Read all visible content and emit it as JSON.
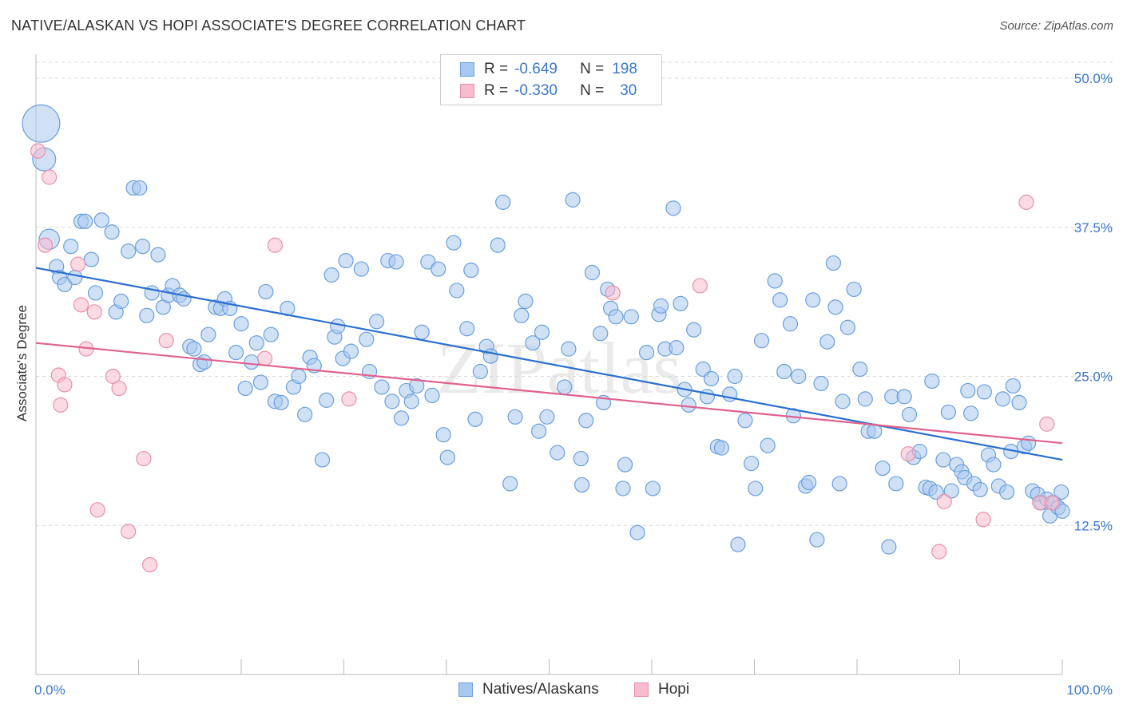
{
  "title": "NATIVE/ALASKAN VS HOPI ASSOCIATE'S DEGREE CORRELATION CHART",
  "source": "Source: ZipAtlas.com",
  "watermark": "ZIPatlas",
  "legend": {
    "rows": [
      {
        "r_label": "R =",
        "r_value": "-0.649",
        "n_label": "N =",
        "n_value": "198"
      },
      {
        "r_label": "R =",
        "r_value": "-0.330",
        "n_label": "N =",
        "n_value": "30"
      }
    ]
  },
  "bottom_legend": {
    "series1": "Natives/Alaskans",
    "series2": "Hopi"
  },
  "colors": {
    "blue_fill": "#a9c8ef",
    "blue_stroke": "#6a9fdc",
    "blue_line": "#2b6fd0",
    "pink_fill": "#f7bccd",
    "pink_stroke": "#e890ab",
    "pink_line": "#e0628e",
    "tick_text": "#3b78c9",
    "grid": "#d9d9d9"
  },
  "chart_data": {
    "type": "scatter",
    "title": "NATIVE/ALASKAN VS HOPI ASSOCIATE'S DEGREE CORRELATION CHART",
    "xlabel": "",
    "ylabel": "Associate's Degree",
    "xlim": [
      0,
      100
    ],
    "ylim": [
      0,
      52.5
    ],
    "x_tick_labels": [
      "0.0%",
      "100.0%"
    ],
    "y_ticks": [
      12.5,
      25.0,
      37.5,
      50.0
    ],
    "y_tick_labels": [
      "12.5%",
      "25.0%",
      "37.5%",
      "50.0%"
    ],
    "grid": true,
    "legend_position": "top-center",
    "series": [
      {
        "name": "Natives/Alaskans",
        "R": -0.649,
        "N": 198,
        "trend": {
          "x0": 0,
          "y0": 34.1,
          "x1": 100,
          "y1": 18.0
        },
        "points": [
          [
            0.5,
            46.2,
            2.6
          ],
          [
            0.8,
            43.2,
            1.6
          ],
          [
            1.3,
            36.5,
            1.4
          ],
          [
            2.0,
            34.2,
            1
          ],
          [
            2.3,
            33.3,
            1
          ],
          [
            2.8,
            32.7,
            1
          ],
          [
            3.4,
            35.9,
            1
          ],
          [
            3.8,
            33.3,
            1
          ],
          [
            4.4,
            38.0,
            1
          ],
          [
            4.8,
            38.0,
            1
          ],
          [
            5.4,
            34.8,
            1
          ],
          [
            5.8,
            32.0,
            1
          ],
          [
            6.4,
            38.1,
            1
          ],
          [
            7.4,
            37.1,
            1
          ],
          [
            7.8,
            30.4,
            1
          ],
          [
            8.3,
            31.3,
            1
          ],
          [
            9.0,
            35.5,
            1
          ],
          [
            9.5,
            40.8,
            1
          ],
          [
            10.1,
            40.8,
            1
          ],
          [
            10.4,
            35.9,
            1
          ],
          [
            10.8,
            30.1,
            1
          ],
          [
            11.3,
            32.0,
            1
          ],
          [
            11.9,
            35.2,
            1
          ],
          [
            12.4,
            30.8,
            1
          ],
          [
            12.9,
            31.8,
            1
          ],
          [
            13.3,
            32.6,
            1
          ],
          [
            14.0,
            31.8,
            1
          ],
          [
            14.4,
            31.5,
            1
          ],
          [
            15.0,
            27.5,
            1
          ],
          [
            15.4,
            27.3,
            1
          ],
          [
            16.0,
            26.0,
            1
          ],
          [
            16.4,
            26.2,
            1
          ],
          [
            16.8,
            28.5,
            1
          ],
          [
            17.5,
            30.8,
            1
          ],
          [
            18.0,
            30.7,
            1
          ],
          [
            18.4,
            31.5,
            1
          ],
          [
            18.9,
            30.7,
            1
          ],
          [
            19.5,
            27.0,
            1
          ],
          [
            20.0,
            29.4,
            1
          ],
          [
            20.4,
            24.0,
            1
          ],
          [
            21.0,
            26.2,
            1
          ],
          [
            21.5,
            27.8,
            1
          ],
          [
            21.9,
            24.5,
            1
          ],
          [
            22.4,
            32.1,
            1
          ],
          [
            22.9,
            28.5,
            1
          ],
          [
            23.3,
            22.9,
            1
          ],
          [
            23.9,
            22.8,
            1
          ],
          [
            24.5,
            30.7,
            1
          ],
          [
            25.1,
            24.1,
            1
          ],
          [
            25.6,
            25.0,
            1
          ],
          [
            26.2,
            21.8,
            1
          ],
          [
            26.7,
            26.6,
            1
          ],
          [
            27.1,
            25.9,
            1
          ],
          [
            27.9,
            18.0,
            1
          ],
          [
            28.3,
            23.0,
            1
          ],
          [
            28.8,
            33.5,
            1
          ],
          [
            29.1,
            28.3,
            1
          ],
          [
            29.4,
            29.2,
            1
          ],
          [
            29.9,
            26.5,
            1
          ],
          [
            30.2,
            34.7,
            1
          ],
          [
            30.7,
            27.1,
            1
          ],
          [
            31.7,
            34.0,
            1
          ],
          [
            32.2,
            28.1,
            1
          ],
          [
            32.5,
            25.4,
            1
          ],
          [
            33.2,
            29.6,
            1
          ],
          [
            33.7,
            24.1,
            1
          ],
          [
            34.3,
            34.7,
            1
          ],
          [
            34.7,
            22.9,
            1
          ],
          [
            35.1,
            34.6,
            1
          ],
          [
            35.6,
            21.5,
            1
          ],
          [
            36.1,
            23.8,
            1
          ],
          [
            36.6,
            22.9,
            1
          ],
          [
            37.1,
            24.2,
            1
          ],
          [
            37.6,
            28.7,
            1
          ],
          [
            38.2,
            34.6,
            1
          ],
          [
            38.6,
            23.4,
            1
          ],
          [
            39.2,
            34.0,
            1
          ],
          [
            39.7,
            20.1,
            1
          ],
          [
            40.1,
            18.2,
            1
          ],
          [
            40.7,
            36.2,
            1
          ],
          [
            41.0,
            32.2,
            1
          ],
          [
            42.0,
            29.0,
            1
          ],
          [
            42.4,
            33.9,
            1
          ],
          [
            42.8,
            21.4,
            1
          ],
          [
            43.3,
            25.4,
            1
          ],
          [
            43.9,
            27.5,
            1
          ],
          [
            44.3,
            26.7,
            1
          ],
          [
            45.0,
            36.0,
            1
          ],
          [
            45.5,
            39.6,
            1
          ],
          [
            46.2,
            16.0,
            1
          ],
          [
            46.7,
            21.6,
            1
          ],
          [
            47.3,
            30.1,
            1
          ],
          [
            47.7,
            31.3,
            1
          ],
          [
            48.4,
            27.8,
            1
          ],
          [
            49.0,
            20.4,
            1
          ],
          [
            49.3,
            28.7,
            1
          ],
          [
            49.8,
            21.6,
            1
          ],
          [
            50.8,
            18.6,
            1
          ],
          [
            51.5,
            24.1,
            1
          ],
          [
            51.9,
            27.3,
            1
          ],
          [
            52.3,
            39.8,
            1
          ],
          [
            53.1,
            18.1,
            1
          ],
          [
            53.2,
            15.9,
            1
          ],
          [
            53.6,
            21.3,
            1
          ],
          [
            54.2,
            33.7,
            1
          ],
          [
            55.0,
            28.6,
            1
          ],
          [
            55.3,
            22.8,
            1
          ],
          [
            55.7,
            32.3,
            1
          ],
          [
            56.0,
            30.7,
            1
          ],
          [
            56.5,
            30.0,
            1
          ],
          [
            57.2,
            15.6,
            1
          ],
          [
            57.4,
            17.6,
            1
          ],
          [
            58.0,
            30.0,
            1
          ],
          [
            58.6,
            11.9,
            1
          ],
          [
            59.5,
            27.0,
            1
          ],
          [
            60.1,
            15.6,
            1
          ],
          [
            60.7,
            30.2,
            1
          ],
          [
            60.9,
            30.9,
            1
          ],
          [
            61.3,
            27.3,
            1
          ],
          [
            62.1,
            39.1,
            1
          ],
          [
            62.4,
            27.4,
            1
          ],
          [
            62.8,
            31.1,
            1
          ],
          [
            63.2,
            23.9,
            1
          ],
          [
            63.6,
            22.6,
            1
          ],
          [
            64.1,
            28.9,
            1
          ],
          [
            65.0,
            25.6,
            1
          ],
          [
            65.4,
            23.3,
            1
          ],
          [
            65.8,
            24.8,
            1
          ],
          [
            66.4,
            19.1,
            1
          ],
          [
            66.8,
            19.0,
            1
          ],
          [
            67.6,
            23.5,
            1
          ],
          [
            68.1,
            25.0,
            1
          ],
          [
            68.4,
            10.9,
            1
          ],
          [
            69.1,
            21.3,
            1
          ],
          [
            69.7,
            17.7,
            1
          ],
          [
            70.1,
            15.6,
            1
          ],
          [
            70.7,
            28.0,
            1
          ],
          [
            71.3,
            19.2,
            1
          ],
          [
            72.0,
            33.0,
            1
          ],
          [
            72.5,
            31.4,
            1
          ],
          [
            72.9,
            25.4,
            1
          ],
          [
            73.5,
            29.4,
            1
          ],
          [
            73.8,
            21.7,
            1
          ],
          [
            74.3,
            25.0,
            1
          ],
          [
            75.0,
            15.8,
            1
          ],
          [
            75.3,
            16.1,
            1
          ],
          [
            75.7,
            31.4,
            1
          ],
          [
            76.1,
            11.3,
            1
          ],
          [
            76.5,
            24.4,
            1
          ],
          [
            77.1,
            27.9,
            1
          ],
          [
            77.7,
            34.5,
            1
          ],
          [
            77.9,
            30.8,
            1
          ],
          [
            78.3,
            16.0,
            1
          ],
          [
            78.6,
            22.9,
            1
          ],
          [
            79.1,
            29.1,
            1
          ],
          [
            79.7,
            32.3,
            1
          ],
          [
            80.3,
            25.6,
            1
          ],
          [
            80.8,
            23.1,
            1
          ],
          [
            81.1,
            20.4,
            1
          ],
          [
            81.7,
            20.4,
            1
          ],
          [
            82.5,
            17.3,
            1
          ],
          [
            83.1,
            10.7,
            1
          ],
          [
            83.4,
            23.3,
            1
          ],
          [
            83.8,
            16.0,
            1
          ],
          [
            84.6,
            23.3,
            1
          ],
          [
            85.1,
            21.8,
            1
          ],
          [
            85.5,
            18.2,
            1
          ],
          [
            86.1,
            18.7,
            1
          ],
          [
            86.7,
            15.7,
            1
          ],
          [
            87.1,
            15.6,
            1
          ],
          [
            87.3,
            24.6,
            1
          ],
          [
            87.7,
            15.3,
            1
          ],
          [
            88.4,
            18.0,
            1
          ],
          [
            88.9,
            22.0,
            1
          ],
          [
            89.2,
            15.4,
            1
          ],
          [
            89.7,
            17.6,
            1
          ],
          [
            90.2,
            17.0,
            1
          ],
          [
            90.5,
            16.5,
            1
          ],
          [
            90.8,
            23.8,
            1
          ],
          [
            91.1,
            21.9,
            1
          ],
          [
            91.4,
            16.0,
            1
          ],
          [
            92.0,
            15.5,
            1
          ],
          [
            92.4,
            23.7,
            1
          ],
          [
            92.8,
            18.4,
            1
          ],
          [
            93.3,
            17.6,
            1
          ],
          [
            93.8,
            15.8,
            1
          ],
          [
            94.2,
            23.1,
            1
          ],
          [
            94.6,
            15.3,
            1
          ],
          [
            95.0,
            18.7,
            1
          ],
          [
            95.2,
            24.2,
            1
          ],
          [
            95.8,
            22.8,
            1
          ],
          [
            96.3,
            19.1,
            1
          ],
          [
            96.7,
            19.4,
            1
          ],
          [
            97.1,
            15.4,
            1
          ],
          [
            97.6,
            15.1,
            1
          ],
          [
            98.0,
            14.4,
            1
          ],
          [
            98.5,
            14.7,
            1
          ],
          [
            98.8,
            13.3,
            1
          ],
          [
            99.2,
            14.4,
            1
          ],
          [
            99.6,
            14.0,
            1
          ],
          [
            99.9,
            15.3,
            1
          ],
          [
            100.0,
            13.7,
            1
          ]
        ]
      },
      {
        "name": "Hopi",
        "R": -0.33,
        "N": 30,
        "trend": {
          "x0": 0,
          "y0": 27.8,
          "x1": 100,
          "y1": 19.4
        },
        "points": [
          [
            0.2,
            43.9
          ],
          [
            0.9,
            36.0
          ],
          [
            1.3,
            41.7
          ],
          [
            2.2,
            25.1
          ],
          [
            2.4,
            22.6
          ],
          [
            2.8,
            24.3
          ],
          [
            4.1,
            34.4
          ],
          [
            4.4,
            31.0
          ],
          [
            4.9,
            27.3
          ],
          [
            5.7,
            30.4
          ],
          [
            6.0,
            13.8
          ],
          [
            7.5,
            25.0
          ],
          [
            8.1,
            24.0
          ],
          [
            9.0,
            12.0
          ],
          [
            10.5,
            18.1
          ],
          [
            11.1,
            9.2
          ],
          [
            12.7,
            28.0
          ],
          [
            22.3,
            26.5
          ],
          [
            23.3,
            36.0
          ],
          [
            30.5,
            23.1
          ],
          [
            56.2,
            32.0
          ],
          [
            64.7,
            32.6
          ],
          [
            85.0,
            18.5
          ],
          [
            88.0,
            10.3
          ],
          [
            88.5,
            14.5
          ],
          [
            92.3,
            13.0
          ],
          [
            96.5,
            39.6
          ],
          [
            97.8,
            14.4
          ],
          [
            98.5,
            21.0
          ],
          [
            99.0,
            14.4
          ]
        ]
      }
    ]
  }
}
